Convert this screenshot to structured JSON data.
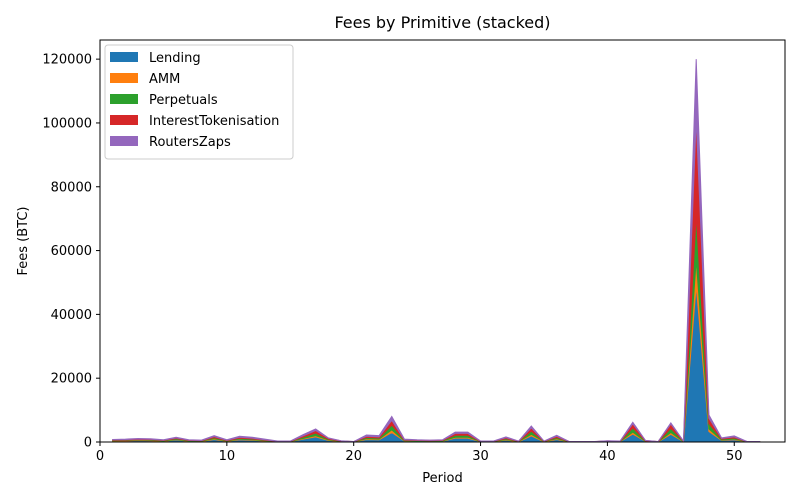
{
  "chart_data": {
    "type": "area",
    "stacked": true,
    "title": "Fees by Primitive (stacked)",
    "xlabel": "Period",
    "ylabel": "Fees (BTC)",
    "xlim": [
      0,
      54
    ],
    "ylim": [
      0,
      126000
    ],
    "xticks": [
      0,
      10,
      20,
      30,
      40,
      50
    ],
    "yticks": [
      0,
      20000,
      40000,
      60000,
      80000,
      100000,
      120000
    ],
    "grid": false,
    "legend_position": "top-left",
    "x": [
      1,
      2,
      3,
      4,
      5,
      6,
      7,
      8,
      9,
      10,
      11,
      12,
      13,
      14,
      15,
      16,
      17,
      18,
      19,
      20,
      21,
      22,
      23,
      24,
      25,
      26,
      27,
      28,
      29,
      30,
      31,
      32,
      33,
      34,
      35,
      36,
      37,
      38,
      39,
      40,
      41,
      42,
      43,
      44,
      45,
      46,
      47,
      48,
      49,
      50,
      51,
      52
    ],
    "series": [
      {
        "name": "Lending",
        "color": "#1f77b4",
        "values": [
          300,
          350,
          450,
          400,
          250,
          650,
          250,
          200,
          800,
          250,
          700,
          550,
          300,
          100,
          100,
          900,
          1600,
          500,
          150,
          50,
          800,
          700,
          3000,
          300,
          250,
          200,
          250,
          1200,
          1200,
          100,
          100,
          600,
          100,
          1900,
          100,
          800,
          50,
          50,
          50,
          150,
          100,
          2500,
          200,
          50,
          2400,
          100,
          49000,
          3300,
          500,
          700,
          50,
          50
        ]
      },
      {
        "name": "AMM",
        "color": "#ff7f0e",
        "values": [
          100,
          100,
          120,
          120,
          80,
          150,
          80,
          80,
          200,
          80,
          180,
          150,
          100,
          50,
          50,
          200,
          400,
          150,
          50,
          20,
          200,
          200,
          800,
          100,
          80,
          80,
          80,
          300,
          300,
          50,
          50,
          150,
          50,
          500,
          50,
          200,
          20,
          20,
          20,
          50,
          50,
          600,
          50,
          20,
          600,
          50,
          8000,
          800,
          150,
          200,
          20,
          20
        ]
      },
      {
        "name": "Perpetuals",
        "color": "#2ca02c",
        "values": [
          150,
          150,
          180,
          180,
          120,
          250,
          120,
          100,
          350,
          120,
          300,
          250,
          150,
          50,
          50,
          400,
          800,
          250,
          80,
          30,
          400,
          350,
          1500,
          150,
          120,
          120,
          120,
          600,
          600,
          50,
          50,
          300,
          50,
          1000,
          50,
          400,
          30,
          30,
          30,
          80,
          50,
          1300,
          100,
          30,
          1300,
          50,
          14000,
          1700,
          250,
          350,
          30,
          30
        ]
      },
      {
        "name": "InterestTokenisation",
        "color": "#d62728",
        "values": [
          150,
          150,
          180,
          180,
          120,
          250,
          120,
          100,
          350,
          120,
          300,
          250,
          150,
          50,
          50,
          400,
          800,
          250,
          80,
          30,
          400,
          350,
          1500,
          150,
          120,
          120,
          120,
          600,
          600,
          50,
          50,
          300,
          50,
          1000,
          50,
          400,
          30,
          30,
          30,
          80,
          50,
          1300,
          100,
          30,
          1300,
          50,
          30000,
          1700,
          250,
          350,
          30,
          30
        ]
      },
      {
        "name": "RoutersZaps",
        "color": "#9467bd",
        "values": [
          100,
          150,
          170,
          120,
          130,
          200,
          130,
          120,
          300,
          130,
          320,
          300,
          200,
          50,
          50,
          400,
          500,
          150,
          40,
          20,
          400,
          400,
          1200,
          200,
          130,
          80,
          130,
          400,
          400,
          50,
          50,
          250,
          50,
          600,
          50,
          300,
          20,
          20,
          20,
          40,
          50,
          500,
          50,
          20,
          400,
          50,
          19000,
          1000,
          150,
          300,
          20,
          20
        ]
      }
    ]
  }
}
